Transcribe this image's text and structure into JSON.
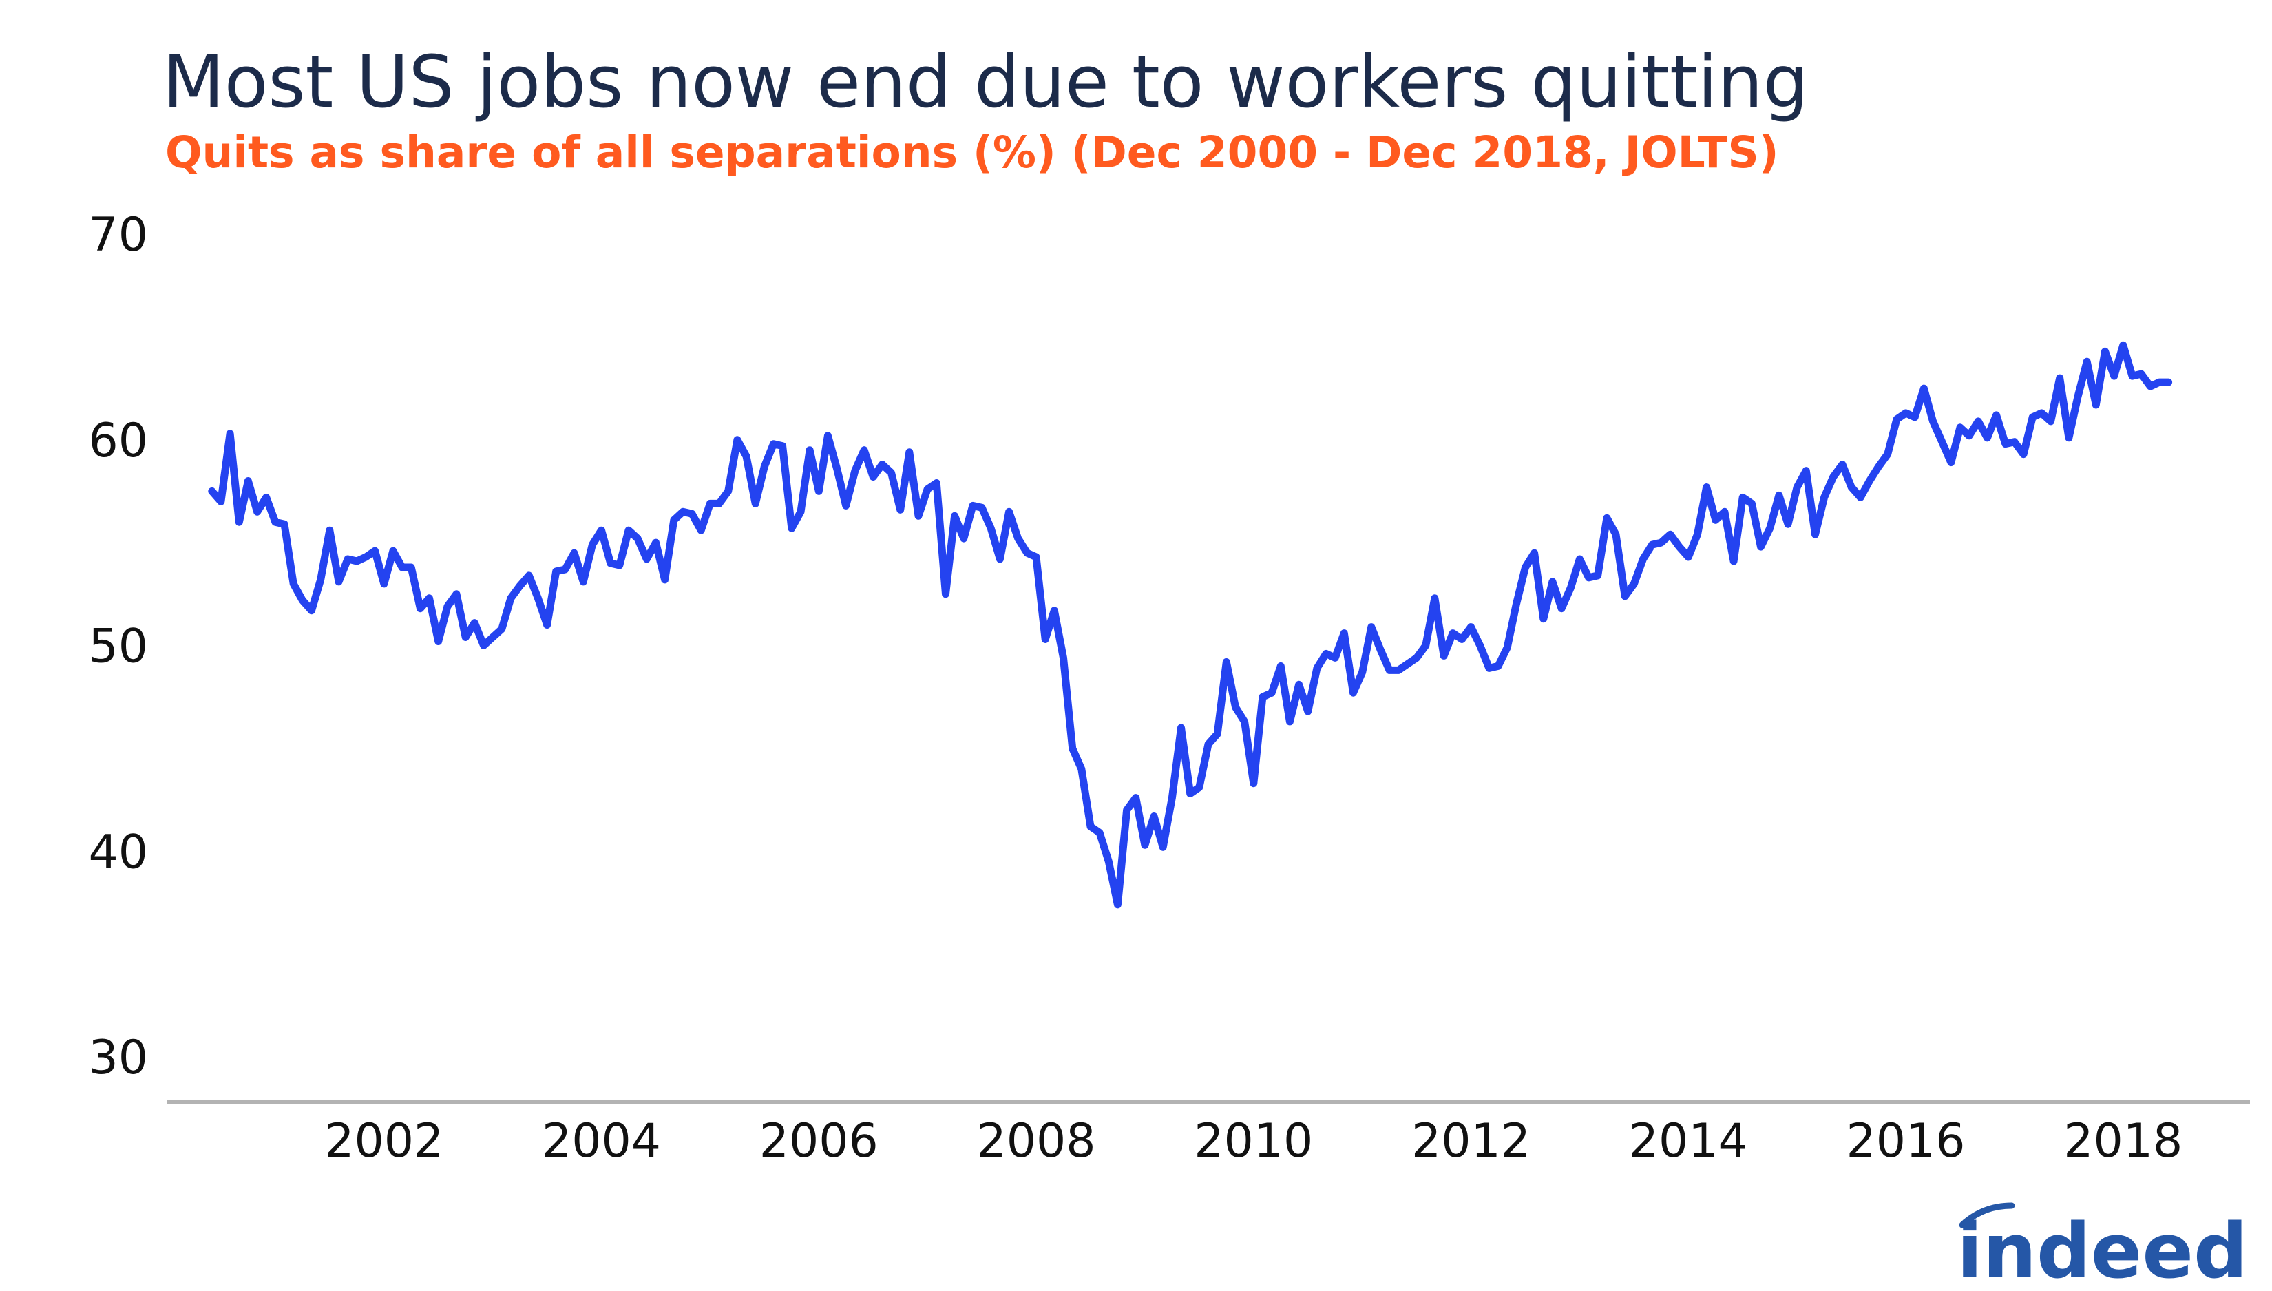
{
  "title": "Most US jobs now end due to workers quitting",
  "subtitle": "Quits as share of all separations (%) (Dec 2000 - Dec 2018, JOLTS)",
  "logo_text": "indeed",
  "colors": {
    "title": "#1c2b4a",
    "subtitle": "#ff5a1f",
    "line": "#2443f0",
    "axis": "#b3b3b3",
    "logo": "#2557a7"
  },
  "chart_data": {
    "type": "line",
    "title": "Most US jobs now end due to workers quitting",
    "subtitle": "Quits as share of all separations (%) (Dec 2000 - Dec 2018, JOLTS)",
    "xlabel": "",
    "ylabel": "",
    "ylim": [
      30,
      70
    ],
    "xlim": [
      "2000-07",
      "2019-09"
    ],
    "y_ticks": [
      "30",
      "40",
      "50",
      "60",
      "70"
    ],
    "x_ticks": [
      "2002",
      "2004",
      "2006",
      "2008",
      "2010",
      "2012",
      "2014",
      "2016",
      "2018"
    ],
    "grid": false,
    "legend": "none",
    "series": [
      {
        "start": "2000-12",
        "frequency": "monthly",
        "values": [
          57.5,
          57.0,
          60.3,
          56.0,
          58.0,
          56.5,
          57.2,
          56.0,
          55.9,
          53.0,
          52.2,
          51.7,
          53.2,
          55.6,
          53.1,
          54.2,
          54.1,
          54.3,
          54.6,
          53.0,
          54.6,
          53.8,
          53.8,
          51.8,
          52.3,
          50.2,
          51.9,
          52.5,
          50.4,
          51.1,
          50.0,
          50.4,
          50.8,
          52.3,
          52.9,
          53.4,
          52.3,
          51.0,
          53.6,
          53.7,
          54.5,
          53.1,
          54.9,
          55.6,
          54.0,
          53.9,
          55.6,
          55.2,
          54.2,
          55.0,
          53.2,
          56.1,
          56.5,
          56.4,
          55.6,
          56.9,
          56.9,
          57.5,
          60.0,
          59.2,
          56.9,
          58.7,
          59.8,
          59.7,
          55.7,
          56.5,
          59.5,
          57.5,
          60.2,
          58.6,
          56.8,
          58.5,
          59.5,
          58.2,
          58.8,
          58.4,
          56.6,
          59.4,
          56.3,
          57.6,
          57.9,
          52.5,
          56.3,
          55.2,
          56.8,
          56.7,
          55.7,
          54.2,
          56.5,
          55.2,
          54.5,
          54.3,
          50.3,
          51.7,
          49.4,
          45.0,
          44.0,
          41.2,
          40.9,
          39.5,
          37.4,
          42.0,
          42.6,
          40.3,
          41.7,
          40.2,
          42.6,
          46.0,
          42.8,
          43.1,
          45.2,
          45.7,
          49.2,
          47.0,
          46.3,
          43.3,
          47.5,
          47.7,
          49.0,
          46.3,
          48.1,
          46.8,
          48.9,
          49.6,
          49.4,
          50.6,
          47.7,
          48.7,
          50.9,
          49.8,
          48.8,
          48.8,
          49.1,
          49.4,
          50.0,
          52.3,
          49.5,
          50.6,
          50.3,
          50.9,
          50.0,
          48.9,
          49.0,
          49.9,
          52.0,
          53.8,
          54.5,
          51.3,
          53.1,
          51.8,
          52.8,
          54.2,
          53.3,
          53.4,
          56.2,
          55.4,
          52.4,
          53.0,
          54.2,
          54.9,
          55.0,
          55.4,
          54.8,
          54.3,
          55.4,
          57.7,
          56.1,
          56.5,
          54.1,
          57.2,
          56.9,
          54.8,
          55.7,
          57.3,
          55.9,
          57.7,
          58.5,
          55.4,
          57.2,
          58.2,
          58.8,
          57.7,
          57.2,
          58.0,
          58.7,
          59.3,
          61.0,
          61.3,
          61.1,
          62.5,
          60.9,
          59.9,
          58.9,
          60.6,
          60.2,
          60.9,
          60.1,
          61.2,
          59.8,
          59.9,
          59.3,
          61.1,
          61.3,
          60.9,
          63.0,
          60.1,
          62.1,
          63.8,
          61.7,
          64.3,
          63.1,
          64.6,
          63.1,
          63.2,
          62.6,
          62.8,
          62.8
        ]
      }
    ]
  }
}
